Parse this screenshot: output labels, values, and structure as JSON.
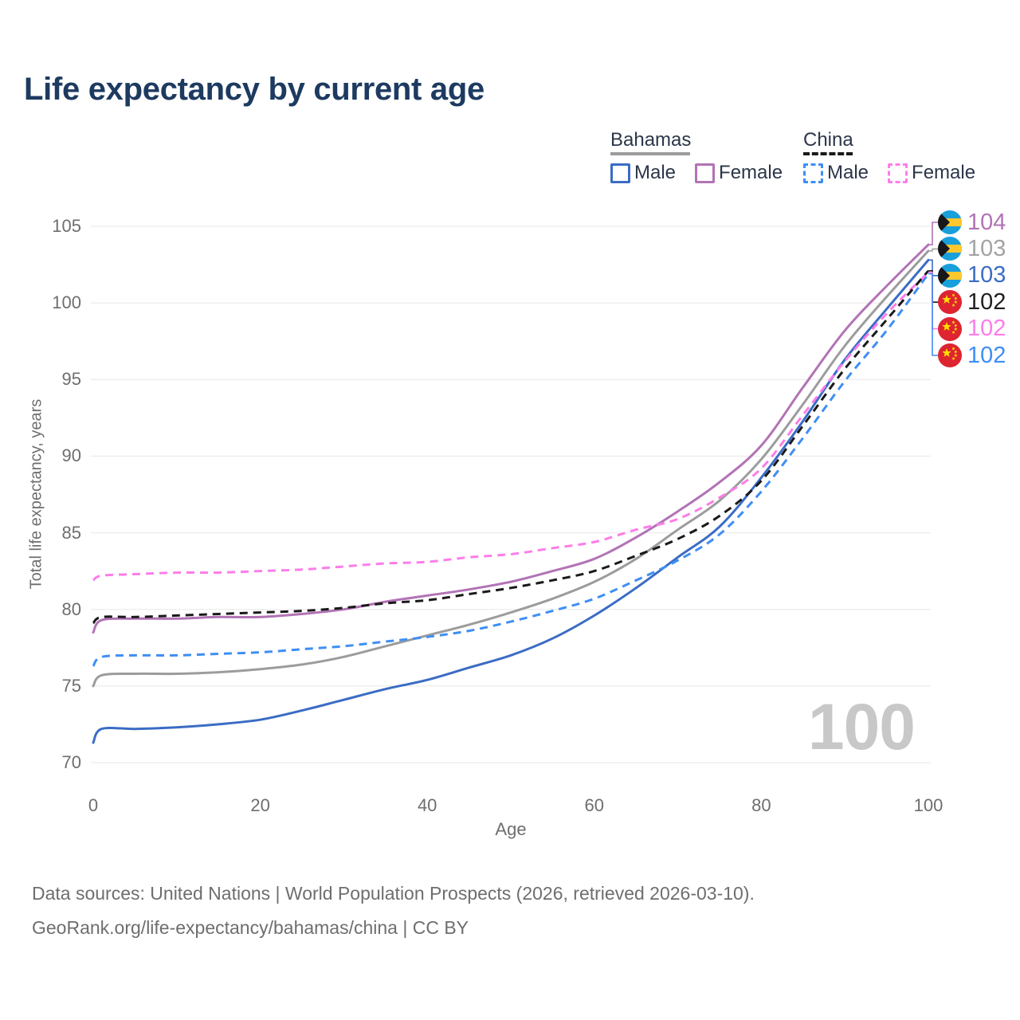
{
  "title": "Life expectancy by current age",
  "y_axis": {
    "title": "Total life expectancy, years",
    "ticks": [
      70,
      75,
      80,
      85,
      90,
      95,
      100,
      105
    ]
  },
  "x_axis": {
    "title": "Age",
    "ticks": [
      0,
      20,
      40,
      60,
      80,
      100
    ]
  },
  "legend": {
    "groups": [
      {
        "label": "Bahamas",
        "line_style": "solid",
        "line_color": "#9c9c9c",
        "items": [
          {
            "label": "Male",
            "color": "#3b6cc4",
            "dashed": false
          },
          {
            "label": "Female",
            "color": "#b273b5",
            "dashed": false
          }
        ]
      },
      {
        "label": "China",
        "line_style": "dashed",
        "line_color": "#1a1a1a",
        "items": [
          {
            "label": "Male",
            "color": "#3f8ef4",
            "dashed": true
          },
          {
            "label": "Female",
            "color": "#fc7de9",
            "dashed": true
          }
        ]
      }
    ]
  },
  "watermark": "100",
  "end_labels": [
    {
      "value": "104",
      "color": "#b273b5",
      "flag": "bahamas",
      "series_index": 1
    },
    {
      "value": "103",
      "color": "#a3a3a3",
      "flag": "bahamas",
      "series_index": 2
    },
    {
      "value": "103",
      "color": "#3b6cc4",
      "flag": "bahamas",
      "series_index": 0
    },
    {
      "value": "102",
      "color": "#1f1f1f",
      "flag": "china",
      "series_index": 5
    },
    {
      "value": "102",
      "color": "#fc7de9",
      "flag": "china",
      "series_index": 4
    },
    {
      "value": "102",
      "color": "#3f8ef4",
      "flag": "china",
      "series_index": 3
    }
  ],
  "footer": {
    "line1": "Data sources: United Nations | World Population Prospects (2026, retrieved 2026-03-10).",
    "line2": "GeoRank.org/life-expectancy/bahamas/china | CC BY"
  },
  "colors": {
    "grid": "#ececec",
    "title": "#1d3a60",
    "axis_text": "#6e6e6e",
    "legend_text": "#2b3648",
    "watermark": "#c8c8c8",
    "background": "#ffffff",
    "bahamas_flag_aqua": "#199fda",
    "bahamas_flag_gold": "#ffc82e",
    "bahamas_flag_black": "#17171c",
    "china_flag_red": "#de2430",
    "china_flag_gold": "#ffde00"
  },
  "chart_data": {
    "type": "line",
    "title": "Life expectancy by current age",
    "xlabel": "Age",
    "ylabel": "Total life expectancy, years",
    "xlim": [
      0,
      100
    ],
    "ylim": [
      69,
      106
    ],
    "grid": "horizontal",
    "legend_position": "top-right",
    "x": [
      0,
      1,
      5,
      10,
      15,
      20,
      25,
      30,
      35,
      40,
      45,
      50,
      55,
      60,
      65,
      70,
      75,
      80,
      85,
      90,
      95,
      100
    ],
    "series": [
      {
        "id": "bahamas-male",
        "name": "Bahamas - Male",
        "color": "#3b6cc4",
        "dash": false,
        "end_value": 103,
        "values": [
          71.3,
          72.2,
          72.2,
          72.3,
          72.5,
          72.8,
          73.4,
          74.1,
          74.8,
          75.4,
          76.2,
          77.0,
          78.1,
          79.6,
          81.4,
          83.4,
          85.4,
          88.6,
          92.3,
          96.3,
          99.6,
          102.8
        ]
      },
      {
        "id": "bahamas-female",
        "name": "Bahamas - Female",
        "color": "#b273b5",
        "dash": false,
        "end_value": 104,
        "values": [
          78.5,
          79.3,
          79.4,
          79.4,
          79.5,
          79.5,
          79.7,
          80.0,
          80.5,
          80.9,
          81.3,
          81.8,
          82.5,
          83.3,
          84.7,
          86.4,
          88.3,
          90.7,
          94.5,
          98.2,
          101.1,
          103.8
        ]
      },
      {
        "id": "bahamas-both",
        "name": "Bahamas - Both sexes",
        "color": "#9c9c9c",
        "dash": false,
        "end_value": 103,
        "values": [
          75.0,
          75.7,
          75.8,
          75.8,
          75.9,
          76.1,
          76.4,
          76.9,
          77.6,
          78.3,
          79.0,
          79.8,
          80.7,
          81.8,
          83.3,
          85.2,
          87.1,
          89.8,
          93.4,
          97.2,
          100.4,
          103.4
        ]
      },
      {
        "id": "china-male",
        "name": "China - Male",
        "color": "#3f8ef4",
        "dash": true,
        "end_value": 102,
        "values": [
          76.3,
          76.9,
          77.0,
          77.0,
          77.1,
          77.2,
          77.4,
          77.6,
          77.9,
          78.2,
          78.6,
          79.2,
          79.9,
          80.7,
          81.9,
          83.2,
          84.9,
          87.7,
          91.2,
          94.9,
          98.2,
          101.9
        ]
      },
      {
        "id": "china-female",
        "name": "China - Female",
        "color": "#fc7de9",
        "dash": true,
        "end_value": 102,
        "values": [
          81.9,
          82.2,
          82.3,
          82.4,
          82.4,
          82.5,
          82.6,
          82.8,
          83.0,
          83.1,
          83.4,
          83.6,
          84.0,
          84.4,
          85.2,
          85.9,
          87.3,
          89.2,
          92.7,
          96.2,
          99.3,
          102.0
        ]
      },
      {
        "id": "china-both",
        "name": "China - Both sexes",
        "color": "#1a1a1a",
        "dash": true,
        "end_value": 102,
        "values": [
          79.1,
          79.5,
          79.5,
          79.6,
          79.7,
          79.8,
          79.9,
          80.1,
          80.4,
          80.6,
          81.0,
          81.4,
          81.9,
          82.5,
          83.5,
          84.6,
          86.1,
          88.4,
          92.0,
          95.7,
          98.9,
          102.1
        ]
      }
    ]
  }
}
